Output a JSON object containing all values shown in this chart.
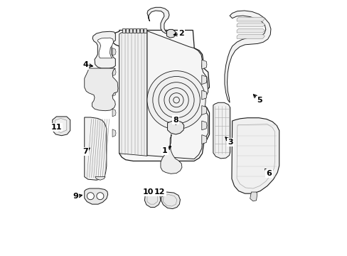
{
  "background_color": "#ffffff",
  "line_color": "#1a1a1a",
  "figsize": [
    4.89,
    3.6
  ],
  "dpi": 100,
  "label_positions": {
    "1": [
      0.465,
      0.595,
      0.435,
      0.56
    ],
    "2": [
      0.53,
      0.13,
      0.515,
      0.17
    ],
    "3": [
      0.72,
      0.56,
      0.695,
      0.53
    ],
    "4": [
      0.155,
      0.255,
      0.195,
      0.26
    ],
    "5": [
      0.84,
      0.395,
      0.82,
      0.36
    ],
    "6": [
      0.88,
      0.68,
      0.86,
      0.65
    ],
    "7": [
      0.155,
      0.595,
      0.175,
      0.575
    ],
    "8": [
      0.51,
      0.47,
      0.51,
      0.5
    ],
    "9": [
      0.115,
      0.77,
      0.145,
      0.76
    ],
    "10": [
      0.4,
      0.76,
      0.415,
      0.79
    ],
    "11": [
      0.04,
      0.5,
      0.06,
      0.5
    ],
    "12": [
      0.445,
      0.76,
      0.46,
      0.79
    ]
  }
}
